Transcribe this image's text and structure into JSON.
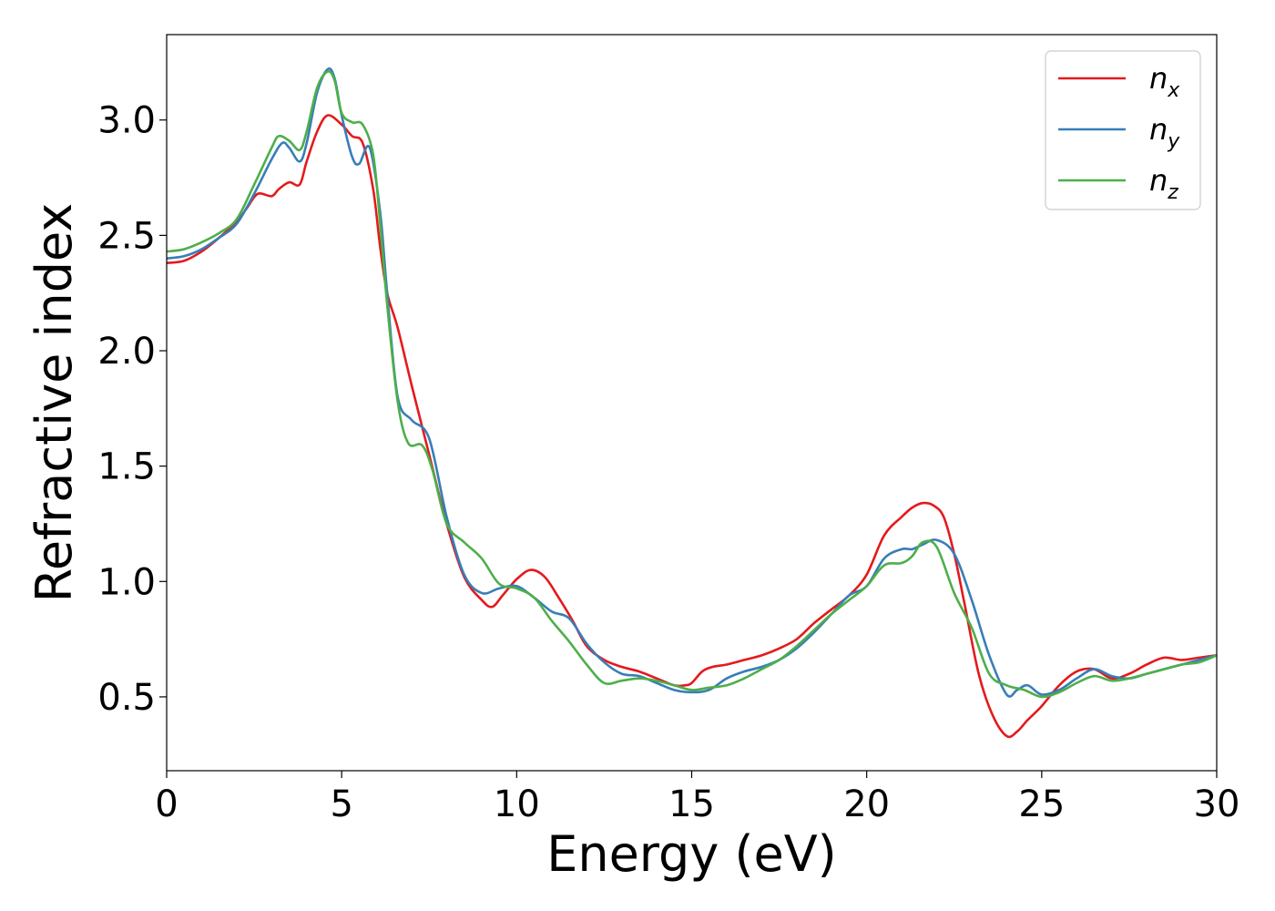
{
  "chart_data": {
    "type": "line",
    "xlabel": "Energy (eV)",
    "ylabel": "Refractive index",
    "xlim": [
      0,
      30
    ],
    "ylim": [
      0.18,
      3.37
    ],
    "xticks": [
      0,
      5,
      10,
      15,
      20,
      25,
      30
    ],
    "xtick_labels": [
      "0",
      "5",
      "10",
      "15",
      "20",
      "25",
      "30"
    ],
    "yticks": [
      0.5,
      1.0,
      1.5,
      2.0,
      2.5,
      3.0
    ],
    "ytick_labels": [
      "0.5",
      "1.0",
      "1.5",
      "2.0",
      "2.5",
      "3.0"
    ],
    "grid": false,
    "legend_position": "top-right",
    "series": [
      {
        "name": "n",
        "subscript": "x",
        "color": "#e41a1c",
        "x": [
          0,
          0.5,
          1,
          1.5,
          2,
          2.3,
          2.6,
          3.0,
          3.2,
          3.5,
          3.8,
          4.0,
          4.3,
          4.6,
          5.0,
          5.3,
          5.6,
          5.9,
          6.1,
          6.3,
          6.6,
          7.0,
          7.5,
          8.0,
          8.5,
          9.0,
          9.3,
          9.6,
          10.0,
          10.4,
          10.8,
          11.2,
          11.6,
          12.0,
          12.5,
          13.0,
          13.5,
          14.0,
          14.5,
          14.8,
          15.0,
          15.3,
          15.6,
          16.0,
          16.5,
          17.0,
          17.5,
          18.0,
          18.5,
          19.0,
          19.5,
          20.0,
          20.5,
          21.0,
          21.3,
          21.6,
          21.9,
          22.2,
          22.5,
          22.8,
          23.2,
          23.6,
          24.0,
          24.3,
          24.6,
          25.0,
          25.5,
          26.0,
          26.5,
          27.0,
          27.5,
          28.0,
          28.5,
          29.0,
          29.5,
          30.0
        ],
        "y": [
          2.38,
          2.39,
          2.43,
          2.49,
          2.56,
          2.62,
          2.68,
          2.67,
          2.7,
          2.73,
          2.72,
          2.82,
          2.95,
          3.02,
          2.98,
          2.93,
          2.9,
          2.7,
          2.45,
          2.25,
          2.1,
          1.85,
          1.55,
          1.25,
          1.02,
          0.92,
          0.89,
          0.94,
          1.01,
          1.05,
          1.02,
          0.93,
          0.83,
          0.72,
          0.66,
          0.63,
          0.61,
          0.58,
          0.55,
          0.55,
          0.56,
          0.61,
          0.63,
          0.64,
          0.66,
          0.68,
          0.71,
          0.75,
          0.82,
          0.88,
          0.94,
          1.03,
          1.2,
          1.28,
          1.32,
          1.34,
          1.33,
          1.28,
          1.12,
          0.9,
          0.6,
          0.42,
          0.33,
          0.35,
          0.4,
          0.46,
          0.55,
          0.61,
          0.62,
          0.58,
          0.6,
          0.64,
          0.67,
          0.66,
          0.67,
          0.68
        ]
      },
      {
        "name": "n",
        "subscript": "y",
        "color": "#377eb8",
        "x": [
          0,
          0.5,
          1,
          1.5,
          2,
          2.5,
          3.0,
          3.3,
          3.5,
          3.8,
          4.0,
          4.3,
          4.6,
          4.8,
          5.0,
          5.3,
          5.5,
          5.8,
          6.1,
          6.3,
          6.6,
          7.0,
          7.5,
          8.0,
          8.5,
          9.0,
          9.5,
          10.0,
          10.5,
          11.0,
          11.5,
          12.0,
          12.5,
          13.0,
          13.5,
          14.0,
          14.5,
          15.0,
          15.5,
          16.0,
          16.5,
          17.0,
          17.5,
          18.0,
          18.5,
          19.0,
          19.5,
          20.0,
          20.5,
          21.0,
          21.3,
          21.6,
          22.0,
          22.5,
          23.0,
          23.5,
          24.0,
          24.3,
          24.6,
          25.0,
          25.5,
          26.0,
          26.5,
          27.0,
          27.5,
          28.0,
          28.5,
          29.0,
          29.5,
          30.0
        ],
        "y": [
          2.4,
          2.41,
          2.44,
          2.49,
          2.55,
          2.68,
          2.83,
          2.9,
          2.88,
          2.82,
          2.9,
          3.12,
          3.22,
          3.18,
          3.02,
          2.84,
          2.81,
          2.88,
          2.6,
          2.25,
          1.8,
          1.7,
          1.62,
          1.28,
          1.03,
          0.95,
          0.97,
          0.98,
          0.93,
          0.87,
          0.84,
          0.73,
          0.65,
          0.6,
          0.59,
          0.56,
          0.53,
          0.52,
          0.53,
          0.58,
          0.61,
          0.63,
          0.66,
          0.71,
          0.78,
          0.86,
          0.94,
          0.98,
          1.1,
          1.14,
          1.14,
          1.16,
          1.18,
          1.12,
          0.92,
          0.68,
          0.51,
          0.53,
          0.55,
          0.51,
          0.53,
          0.58,
          0.62,
          0.59,
          0.58,
          0.6,
          0.62,
          0.64,
          0.66,
          0.68
        ]
      },
      {
        "name": "n",
        "subscript": "z",
        "color": "#4daf4a",
        "x": [
          0,
          0.5,
          1,
          1.5,
          2,
          2.5,
          3.0,
          3.2,
          3.5,
          3.8,
          4.0,
          4.3,
          4.6,
          4.8,
          5.0,
          5.3,
          5.6,
          5.9,
          6.1,
          6.3,
          6.6,
          6.9,
          7.3,
          7.6,
          8.0,
          8.5,
          9.0,
          9.5,
          10.0,
          10.5,
          11.0,
          11.5,
          12.0,
          12.5,
          13.0,
          13.5,
          14.0,
          14.5,
          15.0,
          15.5,
          16.0,
          16.5,
          17.0,
          17.5,
          18.0,
          18.5,
          19.0,
          19.5,
          20.0,
          20.5,
          21.0,
          21.3,
          21.6,
          22.0,
          22.5,
          23.0,
          23.5,
          24.0,
          24.5,
          25.0,
          25.5,
          26.0,
          26.5,
          27.0,
          27.5,
          28.0,
          28.5,
          29.0,
          29.5,
          30.0
        ],
        "y": [
          2.43,
          2.44,
          2.47,
          2.51,
          2.57,
          2.72,
          2.88,
          2.93,
          2.91,
          2.87,
          2.95,
          3.14,
          3.21,
          3.17,
          3.03,
          2.99,
          2.98,
          2.85,
          2.55,
          2.2,
          1.78,
          1.6,
          1.59,
          1.48,
          1.25,
          1.17,
          1.1,
          0.99,
          0.97,
          0.93,
          0.83,
          0.74,
          0.64,
          0.56,
          0.57,
          0.58,
          0.57,
          0.55,
          0.53,
          0.54,
          0.55,
          0.58,
          0.62,
          0.66,
          0.72,
          0.79,
          0.86,
          0.92,
          0.98,
          1.07,
          1.08,
          1.11,
          1.17,
          1.15,
          0.95,
          0.8,
          0.6,
          0.55,
          0.53,
          0.5,
          0.52,
          0.56,
          0.59,
          0.57,
          0.58,
          0.6,
          0.62,
          0.64,
          0.65,
          0.68
        ]
      }
    ]
  }
}
